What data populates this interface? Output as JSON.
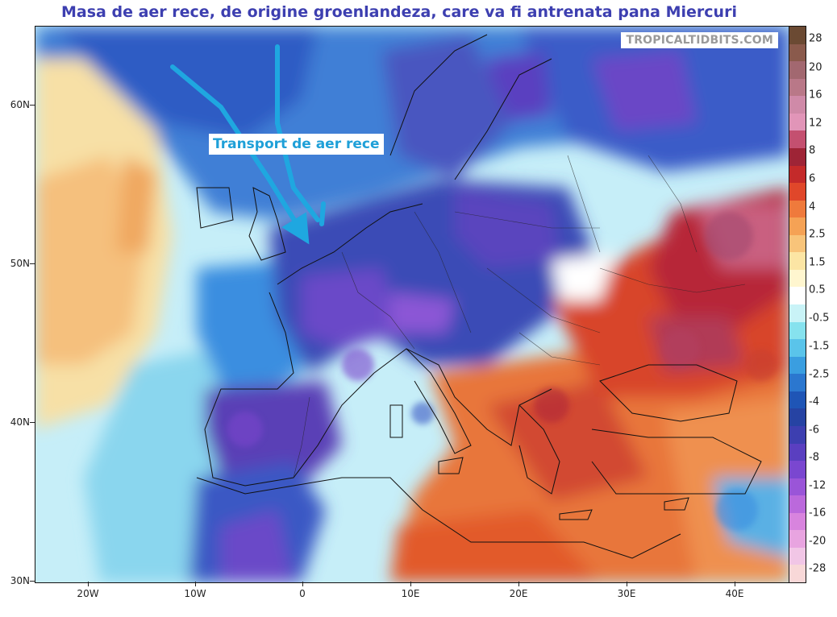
{
  "title": "Masa de aer rece, de origine groenlandeza, care va fi antrenata pana Miercuri",
  "watermark": "TROPICALTIDBITS.COM",
  "annotation": "Transport de aer rece",
  "arrow_color": "#1fa7e0",
  "lat_labels": [
    "60N",
    "50N",
    "40N",
    "30N"
  ],
  "lon_labels": [
    "20W",
    "10W",
    "0",
    "10E",
    "20E",
    "30E",
    "40E"
  ],
  "colorbar": {
    "labels": [
      "28",
      "20",
      "16",
      "12",
      "8",
      "6",
      "4",
      "2.5",
      "1.5",
      "0.5",
      "-0.5",
      "-1.5",
      "-2.5",
      "-4",
      "-6",
      "-8",
      "-12",
      "-16",
      "-20",
      "-28"
    ],
    "colors": [
      "#6b4a33",
      "#8a5a4c",
      "#a26870",
      "#b97888",
      "#cf8aa8",
      "#e195b8",
      "#c45070",
      "#9e2436",
      "#c42a2a",
      "#e0472a",
      "#ef7a3c",
      "#f5a255",
      "#f8c47a",
      "#fce5a4",
      "#fff6cf",
      "#ffffff",
      "#c9f3f7",
      "#86e2ee",
      "#5ac4ea",
      "#3a9ee0",
      "#2b77cf",
      "#1f55b6",
      "#2643a3",
      "#3d3fb0",
      "#5a3fc0",
      "#7a47d0",
      "#9a55d8",
      "#bb69dc",
      "#d884de",
      "#e8a4e0",
      "#f1c6e6",
      "#f8d8d8"
    ]
  },
  "map_colors": {
    "ocean_cold": "#2f5cc4",
    "ocean_light": "#7fd0ee",
    "warm_atlantic": "#f7c98a",
    "land_cold": "#4a3fb2",
    "land_very_cold": "#7a45cc",
    "land_warm": "#e0602c",
    "land_hot": "#b8283a",
    "borders": "#111111"
  }
}
